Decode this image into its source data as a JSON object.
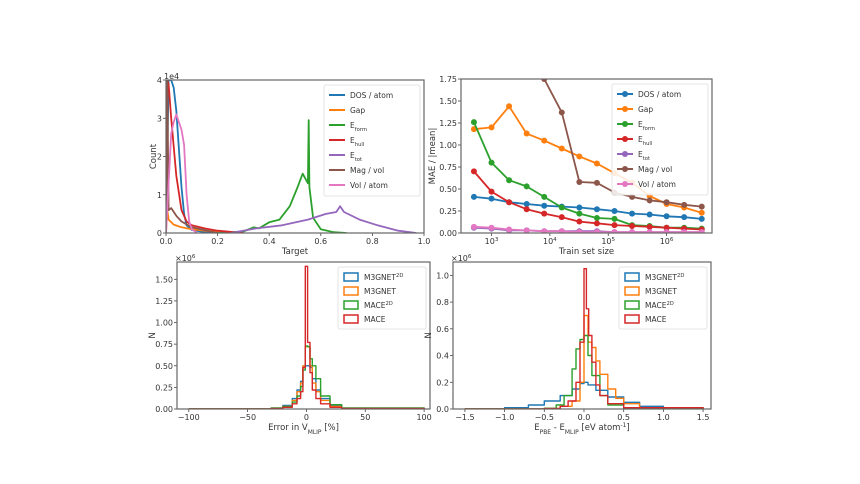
{
  "chart_data": [
    {
      "id": "target-histogram",
      "type": "line",
      "title": "",
      "xlabel": "Target",
      "ylabel": "Count",
      "xlim": [
        0.0,
        1.0
      ],
      "ylim": [
        0,
        40000
      ],
      "y_offset_label": "1e4",
      "x_ticks": [
        "0.0",
        "0.2",
        "0.4",
        "0.6",
        "0.8",
        "1.0"
      ],
      "y_ticks": [
        "0",
        "1",
        "2",
        "3",
        "4"
      ],
      "legend_position": "top-right",
      "series": [
        {
          "name": "DOS / atom",
          "color": "#1f77b4",
          "x": [
            0.0,
            0.01,
            0.02,
            0.03,
            0.04,
            0.05,
            0.06,
            0.07,
            0.08,
            0.1,
            0.15,
            0.2
          ],
          "y": [
            0,
            40000,
            40000,
            38000,
            32000,
            22000,
            12000,
            5000,
            2000,
            800,
            200,
            0
          ]
        },
        {
          "name": "Gap",
          "color": "#ff7f0e",
          "x": [
            0.0,
            0.005,
            0.01,
            0.03,
            0.06,
            0.1,
            0.15,
            0.2,
            0.3
          ],
          "y": [
            0,
            6000,
            3500,
            2200,
            1500,
            1000,
            600,
            300,
            0
          ]
        },
        {
          "name": "E_form",
          "color": "#2ca02c",
          "x": [
            0.2,
            0.3,
            0.34,
            0.36,
            0.4,
            0.44,
            0.48,
            0.51,
            0.53,
            0.55,
            0.553,
            0.556,
            0.57,
            0.6,
            0.65,
            0.7
          ],
          "y": [
            0,
            400,
            1500,
            1200,
            2800,
            3500,
            7000,
            12000,
            15500,
            13000,
            29500,
            12000,
            4000,
            1000,
            200,
            0
          ]
        },
        {
          "name": "E_hull",
          "color": "#d62728",
          "x": [
            0.0,
            0.005,
            0.01,
            0.02,
            0.04,
            0.06,
            0.08,
            0.1,
            0.15,
            0.2,
            0.3
          ],
          "y": [
            0,
            40000,
            39000,
            30000,
            15000,
            6000,
            3000,
            2000,
            1200,
            600,
            0
          ]
        },
        {
          "name": "E_tot",
          "color": "#9467bd",
          "x": [
            0.25,
            0.35,
            0.45,
            0.55,
            0.62,
            0.66,
            0.675,
            0.69,
            0.75,
            0.82,
            0.9,
            0.97
          ],
          "y": [
            0,
            1200,
            2000,
            3500,
            5000,
            5500,
            7000,
            5500,
            3500,
            2000,
            600,
            0
          ]
        },
        {
          "name": "Mag / vol",
          "color": "#8c564b",
          "x": [
            0.0,
            0.005,
            0.01,
            0.02,
            0.04,
            0.06,
            0.1,
            0.2
          ],
          "y": [
            0,
            40000,
            6000,
            6500,
            4500,
            3000,
            1500,
            0
          ]
        },
        {
          "name": "Vol / atom",
          "color": "#e377c2",
          "x": [
            0.0,
            0.02,
            0.03,
            0.04,
            0.05,
            0.06,
            0.07,
            0.08,
            0.09,
            0.1,
            0.12
          ],
          "y": [
            0,
            26000,
            29000,
            31000,
            29000,
            27000,
            23000,
            10000,
            3000,
            1000,
            0
          ]
        }
      ]
    },
    {
      "id": "learning-curve",
      "type": "line",
      "title": "",
      "xlabel": "Train set size",
      "ylabel": "MAE / |mean|",
      "xscale": "log",
      "xlim": [
        300,
        6000000
      ],
      "ylim": [
        0.0,
        1.75
      ],
      "x_ticks": [
        "10^3",
        "10^4",
        "10^5",
        "10^6"
      ],
      "y_ticks": [
        "0.00",
        "0.25",
        "0.50",
        "0.75",
        "1.00",
        "1.25",
        "1.50",
        "1.75"
      ],
      "legend_position": "top-right",
      "x": [
        500,
        1000,
        2000,
        4000,
        8000,
        16000,
        32000,
        64000,
        128000,
        256000,
        512000,
        1000000,
        2000000,
        4000000
      ],
      "series": [
        {
          "name": "DOS / atom",
          "color": "#1f77b4",
          "values": [
            0.41,
            0.39,
            0.35,
            0.33,
            0.31,
            0.3,
            0.29,
            0.27,
            0.25,
            0.22,
            0.21,
            0.19,
            0.18,
            0.16
          ]
        },
        {
          "name": "Gap",
          "color": "#ff7f0e",
          "values": [
            1.18,
            1.2,
            1.44,
            1.13,
            1.05,
            0.96,
            0.87,
            0.79,
            0.68,
            0.57,
            0.42,
            0.33,
            0.29,
            0.23
          ]
        },
        {
          "name": "E_form",
          "color": "#2ca02c",
          "values": [
            1.26,
            0.8,
            0.6,
            0.53,
            0.41,
            0.29,
            0.22,
            0.17,
            0.16,
            0.09,
            0.08,
            0.06,
            0.06,
            0.05
          ]
        },
        {
          "name": "E_hull",
          "color": "#d62728",
          "values": [
            0.7,
            0.47,
            0.35,
            0.27,
            0.22,
            0.18,
            0.13,
            0.11,
            0.09,
            0.08,
            0.07,
            0.06,
            0.05,
            0.04
          ]
        },
        {
          "name": "E_tot",
          "color": "#9467bd",
          "values": [
            0.06,
            0.05,
            0.03,
            0.03,
            0.02,
            0.02,
            0.02,
            0.02,
            0.01,
            0.01,
            0.01,
            0.01,
            0.01,
            0.01
          ]
        },
        {
          "name": "Mag / vol",
          "color": "#8c564b",
          "values": [
            null,
            null,
            null,
            null,
            1.75,
            1.37,
            0.58,
            0.57,
            0.46,
            0.41,
            0.37,
            0.35,
            0.32,
            0.3
          ]
        },
        {
          "name": "Vol / atom",
          "color": "#e377c2",
          "values": [
            0.07,
            0.06,
            0.04,
            0.03,
            0.02,
            0.02,
            0.01,
            0.01,
            0.01,
            0.01,
            0.01,
            0.01,
            0.01,
            0.01
          ]
        }
      ],
      "mag_vol_start_x": 5000
    },
    {
      "id": "volume-error-hist",
      "type": "line",
      "title": "",
      "xlabel": "Error in V_MLIP [%]",
      "ylabel": "N",
      "y_offset_label": "×10^6",
      "xlim": [
        -110,
        105
      ],
      "ylim": [
        0,
        1.7
      ],
      "x_ticks": [
        "-100",
        "-50",
        "0",
        "50",
        "100"
      ],
      "y_ticks": [
        "0.00",
        "0.25",
        "0.50",
        "0.75",
        "1.00",
        "1.25",
        "1.50"
      ],
      "legend_position": "top-right",
      "series": [
        {
          "name": "M3GNET^2D",
          "color": "#1f77b4",
          "x": [
            -100,
            -30,
            -20,
            -12,
            -8,
            -5,
            -3,
            -1,
            1,
            3,
            5,
            8,
            12,
            20,
            30,
            100
          ],
          "y": [
            0,
            0.01,
            0.04,
            0.12,
            0.22,
            0.32,
            0.48,
            0.5,
            0.5,
            0.48,
            0.35,
            0.22,
            0.12,
            0.04,
            0.01,
            0
          ]
        },
        {
          "name": "M3GNET",
          "color": "#ff7f0e",
          "x": [
            -100,
            -30,
            -20,
            -12,
            -8,
            -5,
            -3,
            -1,
            1,
            3,
            5,
            8,
            12,
            20,
            30,
            100
          ],
          "y": [
            0,
            0.01,
            0.03,
            0.1,
            0.2,
            0.3,
            0.5,
            0.72,
            0.72,
            0.5,
            0.3,
            0.2,
            0.1,
            0.03,
            0.01,
            0
          ]
        },
        {
          "name": "MACE^2D",
          "color": "#2ca02c",
          "x": [
            -100,
            -30,
            -20,
            -12,
            -8,
            -5,
            -3,
            -1,
            1,
            3,
            5,
            8,
            12,
            20,
            30,
            100
          ],
          "y": [
            0,
            0.01,
            0.03,
            0.08,
            0.15,
            0.26,
            0.45,
            0.73,
            0.72,
            0.58,
            0.5,
            0.35,
            0.15,
            0.05,
            0.01,
            0
          ]
        },
        {
          "name": "MACE",
          "color": "#d62728",
          "x": [
            -100,
            -30,
            -20,
            -12,
            -8,
            -5,
            -3,
            -1,
            1,
            3,
            5,
            8,
            12,
            20,
            30,
            100
          ],
          "y": [
            0,
            0.005,
            0.02,
            0.06,
            0.12,
            0.2,
            0.48,
            1.65,
            0.77,
            0.42,
            0.22,
            0.12,
            0.06,
            0.02,
            0.005,
            0
          ]
        }
      ]
    },
    {
      "id": "energy-error-hist",
      "type": "line",
      "title": "",
      "xlabel": "E_PBE - E_MLIP [eV atom^-1]",
      "ylabel": "N",
      "y_offset_label": "×10^6",
      "xlim": [
        -1.65,
        1.6
      ],
      "ylim": [
        0,
        1.1
      ],
      "x_ticks": [
        "-1.5",
        "-1.0",
        "-0.5",
        "0.0",
        "0.5",
        "1.0",
        "1.5"
      ],
      "y_ticks": [
        "0.0",
        "0.2",
        "0.4",
        "0.6",
        "0.8",
        "1.0"
      ],
      "legend_position": "top-right",
      "series": [
        {
          "name": "M3GNET^2D",
          "color": "#1f77b4",
          "x": [
            -1.5,
            -1.0,
            -0.7,
            -0.5,
            -0.3,
            -0.15,
            -0.05,
            0.0,
            0.05,
            0.15,
            0.3,
            0.5,
            0.7,
            1.0,
            1.5
          ],
          "y": [
            0,
            0.01,
            0.03,
            0.06,
            0.1,
            0.15,
            0.19,
            0.2,
            0.18,
            0.14,
            0.09,
            0.05,
            0.02,
            0.01,
            0
          ]
        },
        {
          "name": "M3GNET",
          "color": "#ff7f0e",
          "x": [
            -1.5,
            -0.5,
            -0.3,
            -0.15,
            -0.05,
            0.0,
            0.05,
            0.1,
            0.15,
            0.2,
            0.3,
            0.4,
            0.5,
            0.7,
            1.5
          ],
          "y": [
            0,
            0.005,
            0.02,
            0.06,
            0.2,
            0.7,
            0.5,
            0.46,
            0.36,
            0.26,
            0.15,
            0.08,
            0.04,
            0.01,
            0
          ]
        },
        {
          "name": "MACE^2D",
          "color": "#2ca02c",
          "x": [
            -1.5,
            -0.5,
            -0.35,
            -0.25,
            -0.15,
            -0.1,
            -0.05,
            0.0,
            0.05,
            0.1,
            0.2,
            0.3,
            0.5,
            1.5
          ],
          "y": [
            0,
            0.005,
            0.03,
            0.1,
            0.3,
            0.45,
            0.52,
            0.55,
            0.4,
            0.25,
            0.1,
            0.03,
            0.005,
            0
          ]
        },
        {
          "name": "MACE",
          "color": "#d62728",
          "x": [
            -1.5,
            -0.5,
            -0.3,
            -0.2,
            -0.1,
            -0.05,
            0.0,
            0.03,
            0.06,
            0.1,
            0.15,
            0.2,
            0.3,
            0.5,
            1.5
          ],
          "y": [
            0,
            0.003,
            0.02,
            0.06,
            0.2,
            0.5,
            1.05,
            0.75,
            0.55,
            0.35,
            0.18,
            0.1,
            0.04,
            0.01,
            0
          ]
        }
      ]
    }
  ]
}
